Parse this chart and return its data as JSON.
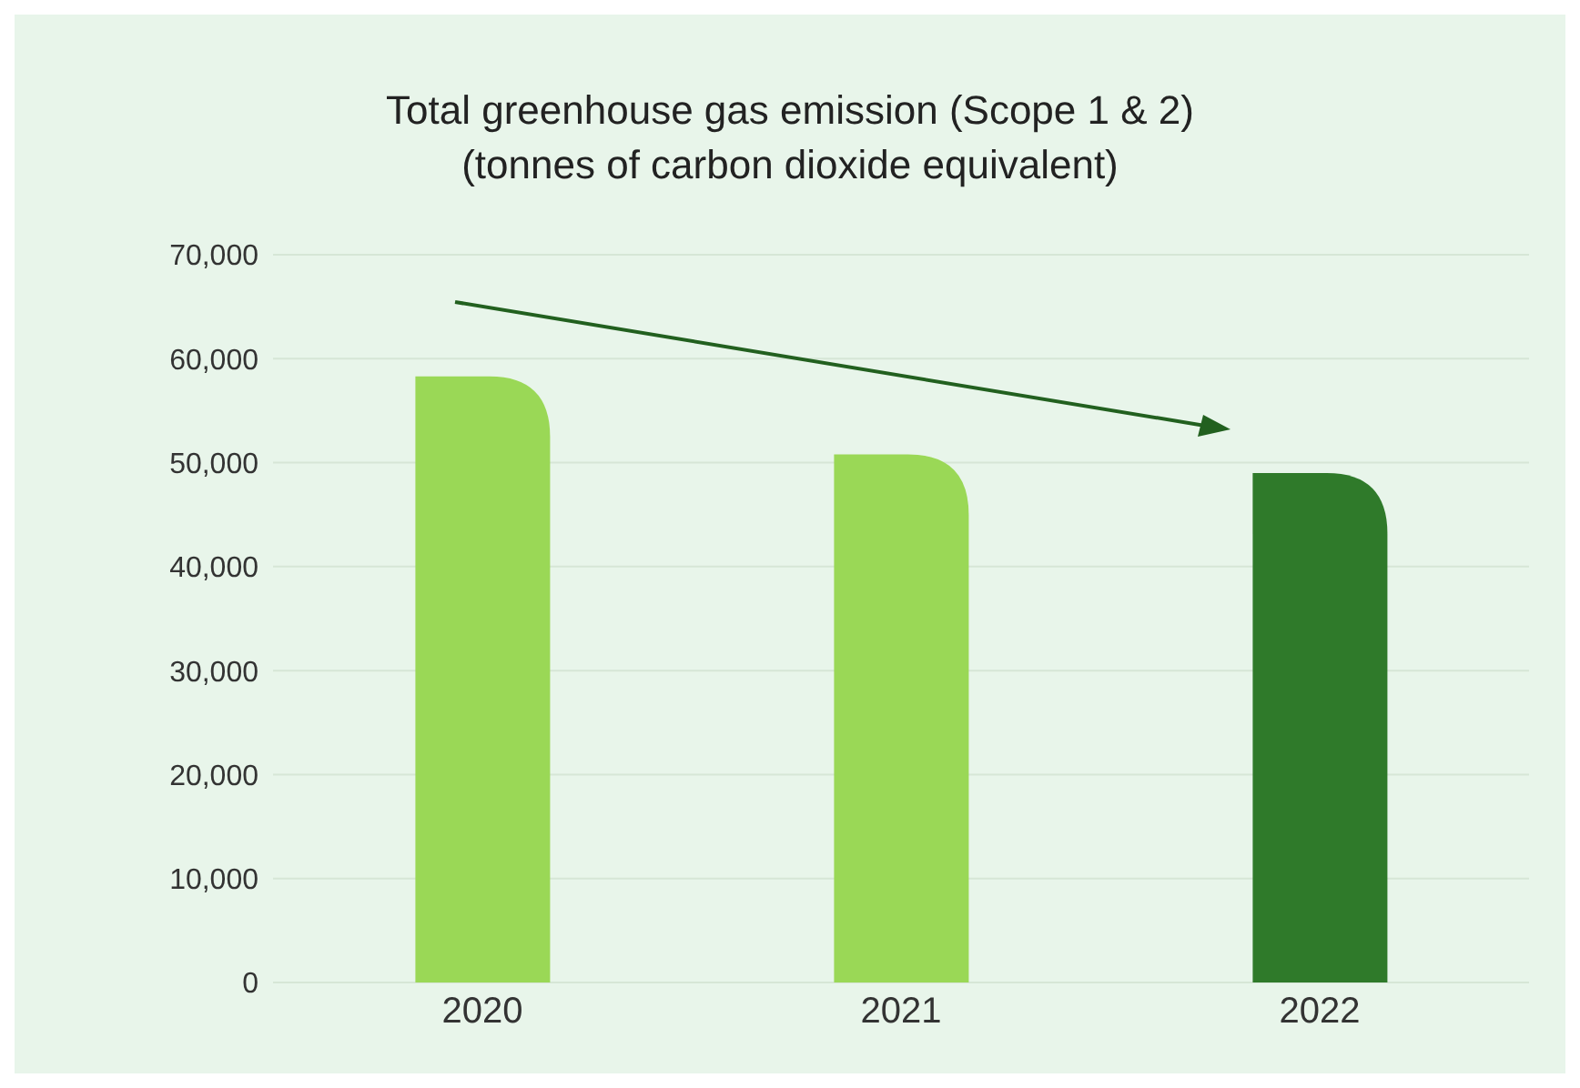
{
  "chart_data": {
    "type": "bar",
    "title": "Total greenhouse gas emission (Scope 1 & 2)",
    "subtitle": "(tonnes of carbon dioxide equivalent)",
    "categories": [
      "2020",
      "2021",
      "2022"
    ],
    "values": [
      58300,
      50800,
      49000
    ],
    "colors": [
      "#9ad856",
      "#9ad856",
      "#2f7a2a"
    ],
    "ylim": [
      0,
      70000
    ],
    "yticks": [
      0,
      {
        "value": 10000,
        "label": "10,000"
      },
      {
        "value": 20000,
        "label": "20,000"
      },
      {
        "value": 30000,
        "label": "30,000"
      },
      {
        "value": 40000,
        "label": "40,000"
      },
      {
        "value": 50000,
        "label": "50,000"
      },
      {
        "value": 60000,
        "label": "60,000"
      },
      {
        "value": 70000,
        "label": "70,000"
      }
    ],
    "grid": "y",
    "legend": false
  }
}
